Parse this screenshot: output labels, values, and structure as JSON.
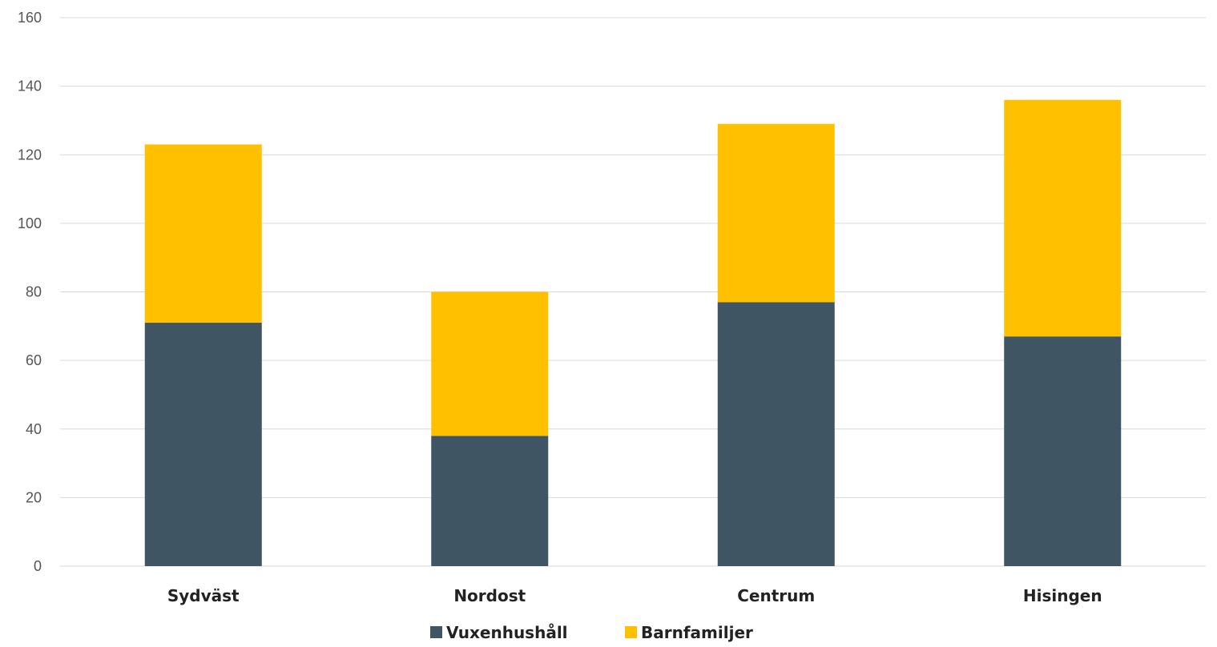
{
  "chart_data": {
    "type": "bar",
    "stacked": true,
    "categories": [
      "Sydväst",
      "Nordost",
      "Centrum",
      "Hisingen"
    ],
    "series": [
      {
        "name": "Vuxenhushåll",
        "values": [
          71,
          38,
          77,
          67
        ],
        "color": "#3F5563"
      },
      {
        "name": "Barnfamiljer",
        "values": [
          52,
          42,
          52,
          69
        ],
        "color": "#FFC000"
      }
    ],
    "ylim": [
      0,
      160
    ],
    "yticks": [
      0,
      20,
      40,
      60,
      80,
      100,
      120,
      140,
      160
    ],
    "grid": true,
    "legend_position": "bottom"
  }
}
